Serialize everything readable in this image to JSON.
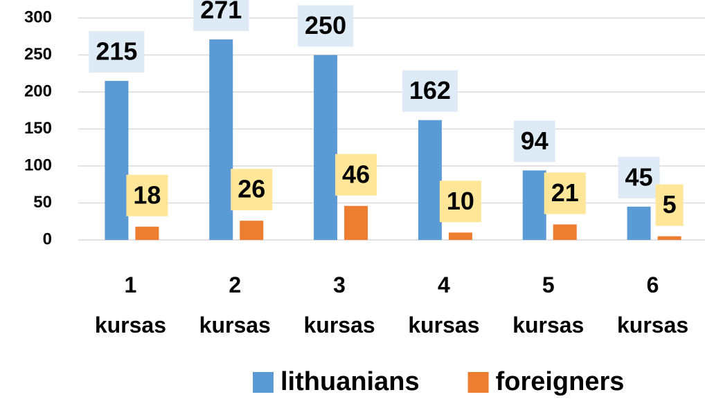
{
  "chart_data": {
    "type": "bar",
    "categories": [
      "1 kursas",
      "2 kursas",
      "3 kursas",
      "4 kursas",
      "5 kursas",
      "6 kursas"
    ],
    "series": [
      {
        "name": "lithuanians",
        "color": "#5b9bd5",
        "label_bg": "#deebf7",
        "values": [
          215,
          271,
          250,
          162,
          94,
          45
        ]
      },
      {
        "name": "foreigners",
        "color": "#ed7d31",
        "label_bg": "#ffe699",
        "values": [
          18,
          26,
          46,
          10,
          21,
          5
        ]
      }
    ],
    "ylim": [
      0,
      300
    ],
    "yticks": [
      0,
      50,
      100,
      150,
      200,
      250,
      300
    ],
    "grid": true,
    "legend": "bottom"
  }
}
